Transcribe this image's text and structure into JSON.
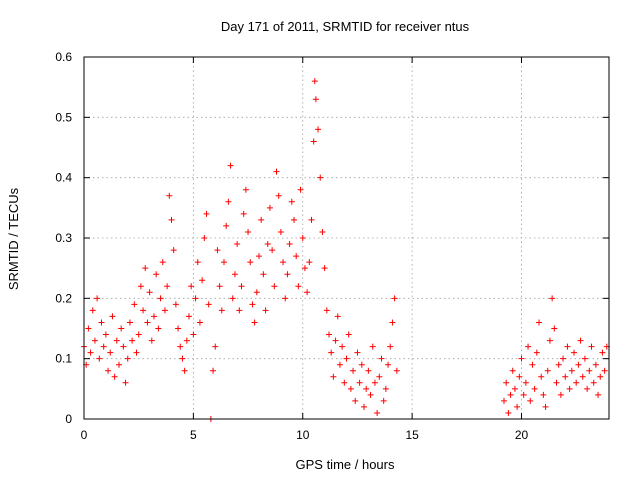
{
  "chart_data": {
    "type": "scatter",
    "title": "Day 171 of 2011, SRMTID for receiver ntus",
    "xlabel": "GPS time / hours",
    "ylabel": "SRMTID / TECUs",
    "xlim": [
      0,
      24
    ],
    "ylim": [
      0,
      0.6
    ],
    "xticks": [
      0,
      5,
      10,
      15,
      20
    ],
    "xtick_labels": [
      "0",
      "5",
      "10",
      "15",
      "20"
    ],
    "yticks": [
      0,
      0.1,
      0.2,
      0.3,
      0.4,
      0.5,
      0.6
    ],
    "ytick_labels": [
      "0",
      "0.1",
      "0.2",
      "0.3",
      "0.4",
      "0.5",
      "0.6"
    ],
    "grid": true,
    "marker": "+",
    "color": "#ff0000",
    "series": [
      {
        "name": "SRMTID",
        "points": [
          [
            0.0,
            0.12
          ],
          [
            0.1,
            0.09
          ],
          [
            0.2,
            0.15
          ],
          [
            0.3,
            0.11
          ],
          [
            0.4,
            0.18
          ],
          [
            0.5,
            0.13
          ],
          [
            0.6,
            0.2
          ],
          [
            0.7,
            0.1
          ],
          [
            0.8,
            0.16
          ],
          [
            0.9,
            0.12
          ],
          [
            1.0,
            0.14
          ],
          [
            1.1,
            0.08
          ],
          [
            1.2,
            0.11
          ],
          [
            1.3,
            0.17
          ],
          [
            1.4,
            0.07
          ],
          [
            1.5,
            0.13
          ],
          [
            1.6,
            0.09
          ],
          [
            1.7,
            0.15
          ],
          [
            1.8,
            0.12
          ],
          [
            1.9,
            0.06
          ],
          [
            2.0,
            0.1
          ],
          [
            2.1,
            0.16
          ],
          [
            2.2,
            0.13
          ],
          [
            2.3,
            0.19
          ],
          [
            2.4,
            0.11
          ],
          [
            2.5,
            0.14
          ],
          [
            2.6,
            0.22
          ],
          [
            2.7,
            0.18
          ],
          [
            2.8,
            0.25
          ],
          [
            2.9,
            0.16
          ],
          [
            3.0,
            0.21
          ],
          [
            3.1,
            0.13
          ],
          [
            3.2,
            0.17
          ],
          [
            3.3,
            0.24
          ],
          [
            3.4,
            0.15
          ],
          [
            3.5,
            0.2
          ],
          [
            3.6,
            0.26
          ],
          [
            3.7,
            0.18
          ],
          [
            3.8,
            0.22
          ],
          [
            3.9,
            0.37
          ],
          [
            4.0,
            0.33
          ],
          [
            4.1,
            0.28
          ],
          [
            4.2,
            0.19
          ],
          [
            4.3,
            0.15
          ],
          [
            4.4,
            0.12
          ],
          [
            4.5,
            0.1
          ],
          [
            4.6,
            0.08
          ],
          [
            4.7,
            0.13
          ],
          [
            4.8,
            0.17
          ],
          [
            4.9,
            0.22
          ],
          [
            5.0,
            0.14
          ],
          [
            5.1,
            0.2
          ],
          [
            5.2,
            0.26
          ],
          [
            5.3,
            0.16
          ],
          [
            5.4,
            0.23
          ],
          [
            5.5,
            0.3
          ],
          [
            5.6,
            0.34
          ],
          [
            5.7,
            0.19
          ],
          [
            5.8,
            0.0
          ],
          [
            5.9,
            0.08
          ],
          [
            6.0,
            0.12
          ],
          [
            6.1,
            0.28
          ],
          [
            6.2,
            0.22
          ],
          [
            6.3,
            0.18
          ],
          [
            6.4,
            0.26
          ],
          [
            6.5,
            0.32
          ],
          [
            6.6,
            0.36
          ],
          [
            6.7,
            0.42
          ],
          [
            6.8,
            0.2
          ],
          [
            6.9,
            0.24
          ],
          [
            7.0,
            0.29
          ],
          [
            7.1,
            0.18
          ],
          [
            7.2,
            0.22
          ],
          [
            7.3,
            0.34
          ],
          [
            7.4,
            0.38
          ],
          [
            7.5,
            0.31
          ],
          [
            7.6,
            0.26
          ],
          [
            7.7,
            0.19
          ],
          [
            7.8,
            0.16
          ],
          [
            7.9,
            0.21
          ],
          [
            8.0,
            0.27
          ],
          [
            8.1,
            0.33
          ],
          [
            8.2,
            0.24
          ],
          [
            8.3,
            0.18
          ],
          [
            8.4,
            0.29
          ],
          [
            8.5,
            0.35
          ],
          [
            8.6,
            0.28
          ],
          [
            8.7,
            0.22
          ],
          [
            8.8,
            0.41
          ],
          [
            8.9,
            0.37
          ],
          [
            9.0,
            0.31
          ],
          [
            9.1,
            0.26
          ],
          [
            9.2,
            0.2
          ],
          [
            9.3,
            0.24
          ],
          [
            9.4,
            0.29
          ],
          [
            9.5,
            0.36
          ],
          [
            9.6,
            0.33
          ],
          [
            9.7,
            0.27
          ],
          [
            9.8,
            0.22
          ],
          [
            9.9,
            0.38
          ],
          [
            10.0,
            0.3
          ],
          [
            10.1,
            0.25
          ],
          [
            10.2,
            0.21
          ],
          [
            10.3,
            0.26
          ],
          [
            10.4,
            0.33
          ],
          [
            10.5,
            0.46
          ],
          [
            10.55,
            0.56
          ],
          [
            10.6,
            0.53
          ],
          [
            10.7,
            0.48
          ],
          [
            10.8,
            0.4
          ],
          [
            10.9,
            0.31
          ],
          [
            11.0,
            0.25
          ],
          [
            11.1,
            0.18
          ],
          [
            11.2,
            0.14
          ],
          [
            11.3,
            0.11
          ],
          [
            11.4,
            0.07
          ],
          [
            11.5,
            0.13
          ],
          [
            11.6,
            0.17
          ],
          [
            11.7,
            0.09
          ],
          [
            11.8,
            0.12
          ],
          [
            11.9,
            0.06
          ],
          [
            12.0,
            0.1
          ],
          [
            12.1,
            0.14
          ],
          [
            12.2,
            0.05
          ],
          [
            12.3,
            0.08
          ],
          [
            12.4,
            0.03
          ],
          [
            12.5,
            0.11
          ],
          [
            12.6,
            0.06
          ],
          [
            12.7,
            0.09
          ],
          [
            12.8,
            0.02
          ],
          [
            12.9,
            0.05
          ],
          [
            13.0,
            0.08
          ],
          [
            13.1,
            0.04
          ],
          [
            13.2,
            0.12
          ],
          [
            13.3,
            0.06
          ],
          [
            13.4,
            0.01
          ],
          [
            13.5,
            0.07
          ],
          [
            13.6,
            0.1
          ],
          [
            13.7,
            0.03
          ],
          [
            13.8,
            0.05
          ],
          [
            13.9,
            0.09
          ],
          [
            14.0,
            0.12
          ],
          [
            14.1,
            0.16
          ],
          [
            14.2,
            0.2
          ],
          [
            14.3,
            0.08
          ],
          [
            19.2,
            0.03
          ],
          [
            19.3,
            0.06
          ],
          [
            19.4,
            0.01
          ],
          [
            19.5,
            0.04
          ],
          [
            19.6,
            0.08
          ],
          [
            19.7,
            0.05
          ],
          [
            19.8,
            0.02
          ],
          [
            19.9,
            0.07
          ],
          [
            20.0,
            0.1
          ],
          [
            20.1,
            0.04
          ],
          [
            20.2,
            0.06
          ],
          [
            20.3,
            0.12
          ],
          [
            20.4,
            0.03
          ],
          [
            20.5,
            0.09
          ],
          [
            20.6,
            0.05
          ],
          [
            20.7,
            0.11
          ],
          [
            20.8,
            0.16
          ],
          [
            20.9,
            0.07
          ],
          [
            21.0,
            0.04
          ],
          [
            21.1,
            0.02
          ],
          [
            21.2,
            0.08
          ],
          [
            21.3,
            0.13
          ],
          [
            21.4,
            0.2
          ],
          [
            21.5,
            0.15
          ],
          [
            21.6,
            0.06
          ],
          [
            21.7,
            0.09
          ],
          [
            21.8,
            0.04
          ],
          [
            21.9,
            0.1
          ],
          [
            22.0,
            0.07
          ],
          [
            22.1,
            0.12
          ],
          [
            22.2,
            0.05
          ],
          [
            22.3,
            0.08
          ],
          [
            22.4,
            0.11
          ],
          [
            22.5,
            0.06
          ],
          [
            22.6,
            0.09
          ],
          [
            22.7,
            0.13
          ],
          [
            22.8,
            0.07
          ],
          [
            22.9,
            0.1
          ],
          [
            23.0,
            0.05
          ],
          [
            23.1,
            0.08
          ],
          [
            23.2,
            0.12
          ],
          [
            23.3,
            0.06
          ],
          [
            23.4,
            0.09
          ],
          [
            23.5,
            0.04
          ],
          [
            23.6,
            0.07
          ],
          [
            23.7,
            0.11
          ],
          [
            23.8,
            0.08
          ],
          [
            23.9,
            0.12
          ]
        ]
      }
    ]
  }
}
